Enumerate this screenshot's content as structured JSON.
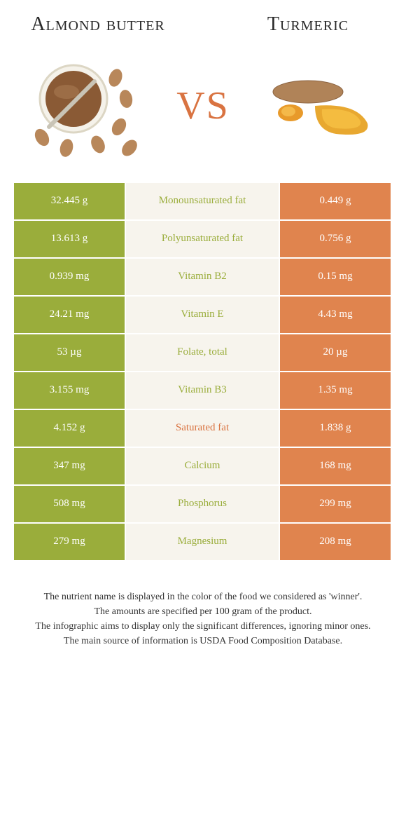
{
  "foods": {
    "left": {
      "name": "Almond butter",
      "color": "#9aad3b"
    },
    "right": {
      "name": "Turmeric",
      "color": "#e0844e"
    }
  },
  "vs_label": "VS",
  "vs_color": "#d97341",
  "nutrient_label_colors": {
    "left_winner": "#9aad3b",
    "right_winner": "#d97341"
  },
  "rows": [
    {
      "left": "32.445 g",
      "label": "Monounsaturated fat",
      "right": "0.449 g",
      "winner": "left"
    },
    {
      "left": "13.613 g",
      "label": "Polyunsaturated fat",
      "right": "0.756 g",
      "winner": "left"
    },
    {
      "left": "0.939 mg",
      "label": "Vitamin B2",
      "right": "0.15 mg",
      "winner": "left"
    },
    {
      "left": "24.21 mg",
      "label": "Vitamin E",
      "right": "4.43 mg",
      "winner": "left"
    },
    {
      "left": "53 µg",
      "label": "Folate, total",
      "right": "20 µg",
      "winner": "left"
    },
    {
      "left": "3.155 mg",
      "label": "Vitamin B3",
      "right": "1.35 mg",
      "winner": "left"
    },
    {
      "left": "4.152 g",
      "label": "Saturated fat",
      "right": "1.838 g",
      "winner": "right"
    },
    {
      "left": "347 mg",
      "label": "Calcium",
      "right": "168 mg",
      "winner": "left"
    },
    {
      "left": "508 mg",
      "label": "Phosphorus",
      "right": "299 mg",
      "winner": "left"
    },
    {
      "left": "279 mg",
      "label": "Magnesium",
      "right": "208 mg",
      "winner": "left"
    }
  ],
  "mid_bg": "#f7f4ed",
  "footnotes": [
    "The nutrient name is displayed in the color of the food we considered as 'winner'.",
    "The amounts are specified per 100 gram of the product.",
    "The infographic aims to display only the significant differences, ignoring minor ones.",
    "The main source of information is USDA Food Composition Database."
  ]
}
